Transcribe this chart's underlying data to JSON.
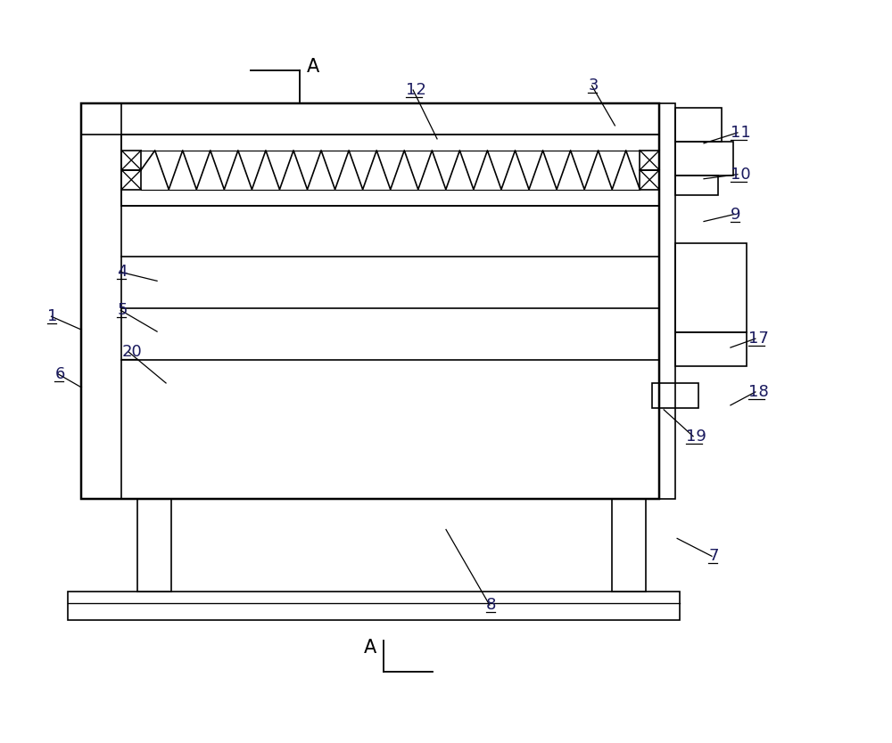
{
  "bg_color": "#ffffff",
  "line_color": "#000000",
  "lw": 1.2,
  "fig_width": 10.0,
  "fig_height": 8.34,
  "label_color": "#1a1a5e",
  "label_fs": 13
}
